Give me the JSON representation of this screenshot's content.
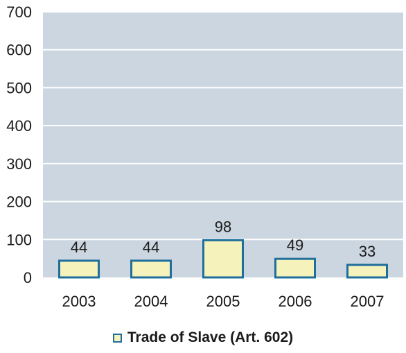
{
  "chart_data": {
    "type": "bar",
    "title": "",
    "xlabel": "",
    "ylabel": "",
    "categories": [
      "2003",
      "2004",
      "2005",
      "2006",
      "2007"
    ],
    "series": [
      {
        "name": "Trade of Slave (Art. 602)",
        "values": [
          44,
          44,
          98,
          49,
          33
        ]
      }
    ],
    "data_labels": [
      "44",
      "44",
      "98",
      "49",
      "33"
    ],
    "ylim": [
      0,
      700
    ],
    "yticks": [
      0,
      100,
      200,
      300,
      400,
      500,
      600,
      700
    ],
    "ytick_labels": [
      "0",
      "100",
      "200",
      "300",
      "400",
      "500",
      "600",
      "700"
    ],
    "grid": true,
    "legend_position": "bottom-center",
    "colors": {
      "plot_background": "#ccd6e0",
      "gridline": "#ffffff",
      "bar_fill": "#f5f2bc",
      "bar_edge": "#1f6e9c",
      "text": "#1a1a1a"
    }
  }
}
